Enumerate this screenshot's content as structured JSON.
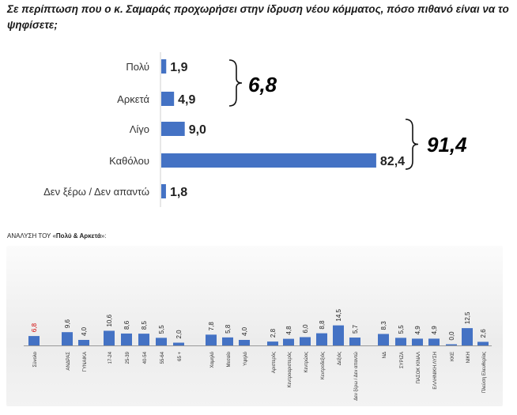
{
  "title": "Σε περίπτωση που ο κ. Σαμαράς προχωρήσει στην ίδρυση νέου κόμματος, πόσο πιθανό είναι να το ψηφίσετε;",
  "subtitle_prefix": "ΑΝΑΛΥΣΗ ΤΟΥ «",
  "subtitle_bold": "Πολύ & Αρκετά",
  "subtitle_suffix": "»:",
  "colors": {
    "bar": "#4472c4",
    "highlight_label": "#d00000",
    "text": "#222222"
  },
  "chart_data": [
    {
      "type": "bar",
      "orientation": "horizontal",
      "categories": [
        "Πολύ",
        "Αρκετά",
        "Λίγο",
        "Καθόλου",
        "Δεν ξέρω / Δεν απαντώ"
      ],
      "values": [
        1.9,
        4.9,
        9.0,
        82.4,
        1.8
      ],
      "value_labels": [
        "1,9",
        "4,9",
        "9,0",
        "82,4",
        "1,8"
      ],
      "xlim": [
        0,
        100
      ],
      "annotations": [
        {
          "text": "6,8",
          "groups": [
            "Πολύ",
            "Αρκετά"
          ]
        },
        {
          "text": "91,4",
          "groups": [
            "Λίγο",
            "Καθόλου"
          ]
        }
      ]
    },
    {
      "type": "bar",
      "orientation": "vertical",
      "categories": [
        "Σύνολο",
        "ΑΝΔΡΑΣ",
        "ΓΥΝΑΙΚΑ",
        "17-24",
        "25-39",
        "40-54",
        "55-64",
        "65 +",
        "Χαμηλό",
        "Μεσαίο",
        "Υψηλό",
        "Αριστερός",
        "Κεντροαριστερός",
        "Κεντρώος",
        "Κεντροδεξιός",
        "Δεξιός",
        "Δεν ξέρω / Δεν απαντώ",
        "ΝΔ",
        "ΣΥΡΙΖΑ",
        "ΠΑΣΟΚ ΚΙΝΑΛ",
        "ΕΛΛΗΝΙΚΗ ΛΥΣΗ",
        "ΚΚΕ",
        "ΝΙΚΗ",
        "Πλεύση Ελευθερίας"
      ],
      "values": [
        6.8,
        9.6,
        4.0,
        10.6,
        8.6,
        8.5,
        5.5,
        2.0,
        7.8,
        5.8,
        4.0,
        2.8,
        4.8,
        6.0,
        8.8,
        14.5,
        5.7,
        8.3,
        5.5,
        4.9,
        4.9,
        0.0,
        12.5,
        2.6
      ],
      "value_labels": [
        "6,8",
        "9,6",
        "4,0",
        "10,6",
        "8,6",
        "8,5",
        "5,5",
        "2,0",
        "7,8",
        "5,8",
        "4,0",
        "2,8",
        "4,8",
        "6,0",
        "8,8",
        "14,5",
        "5,7",
        "8,3",
        "5,5",
        "4,9",
        "4,9",
        "0,0",
        "12,5",
        "2,6"
      ],
      "highlight_index": 0,
      "ylim": [
        0,
        16
      ]
    }
  ]
}
